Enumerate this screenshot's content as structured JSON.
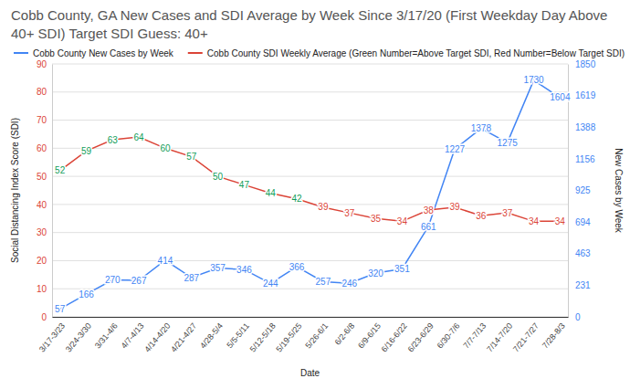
{
  "chart_data": {
    "type": "line",
    "title": "Cobb County, GA New Cases and SDI Average by Week Since 3/17/20 (First Weekday Day Above 40+ SDI) Target SDI Guess: 40+",
    "x_label": "Date",
    "y_label": "Social Distancing Index Score (SDI)",
    "y2_label": "New Cases by Week",
    "categories": [
      "3/17-3/23",
      "3/24-3/30",
      "3/31-4/6",
      "4/7-4/13",
      "4/14-4/20",
      "4/21-4/27",
      "4/28-5/4",
      "5/5-5/11",
      "5/12-5/18",
      "5/19-5/25",
      "5/26-6/1",
      "6/2-6/8",
      "6/9-6/15",
      "6/16-6/22",
      "6/23-6/29",
      "6/30-7/6",
      "7/7-7/13",
      "7/14-7/20",
      "7/21-7/27",
      "7/28-8/3"
    ],
    "series": [
      {
        "name": "Cobb County New Cases by Week",
        "color": "#4285f4",
        "axis": "y2",
        "values": [
          57,
          166,
          270,
          267,
          414,
          287,
          357,
          346,
          244,
          366,
          257,
          246,
          320,
          351,
          661,
          1227,
          1378,
          1275,
          1730,
          1604
        ]
      },
      {
        "name": "Cobb County SDI Weekly Average (Green Number=Above Target SDI, Red Number=Below Target SDI)",
        "color": "#db4437",
        "axis": "y",
        "values": [
          52,
          59,
          63,
          64,
          60,
          57,
          50,
          47,
          44,
          42,
          39,
          37,
          35,
          34,
          38,
          39,
          36,
          37,
          34,
          34
        ],
        "colors": [
          "#0f9d58",
          "#0f9d58",
          "#0f9d58",
          "#0f9d58",
          "#0f9d58",
          "#0f9d58",
          "#0f9d58",
          "#0f9d58",
          "#0f9d58",
          "#0f9d58",
          "#db4437",
          "#db4437",
          "#db4437",
          "#db4437",
          "#db4437",
          "#db4437",
          "#db4437",
          "#db4437",
          "#db4437",
          "#db4437"
        ]
      }
    ],
    "ylim": [
      0,
      90
    ],
    "yticks": [
      0,
      10,
      20,
      30,
      40,
      50,
      60,
      70,
      80,
      90
    ],
    "y2lim": [
      0,
      1850
    ],
    "y2ticks": [
      0,
      {
        "value": 231.25,
        "label": "231"
      },
      {
        "value": 462.5,
        "label": "463"
      },
      {
        "value": 693.75,
        "label": "694"
      },
      925,
      {
        "value": 1156.25,
        "label": "1156"
      },
      {
        "value": 1387.5,
        "label": "1388"
      },
      {
        "value": 1618.75,
        "label": "1619"
      },
      1850
    ],
    "grid": true,
    "legend": "top",
    "data_labels": true
  }
}
